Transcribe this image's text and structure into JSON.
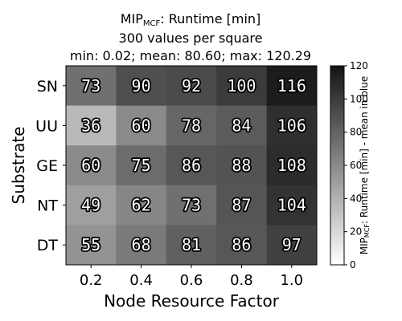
{
  "chart_data": {
    "type": "heatmap",
    "title": {
      "main": "MIP",
      "main_sub": "MCF",
      "main_suffix": ": Runtime [min]",
      "line2": "300 values per square",
      "line3": "min: 0.02; mean: 80.60; max: 120.29"
    },
    "xlabel": "Node Resource Factor",
    "ylabel": "Substrate",
    "x_categories": [
      "0.2",
      "0.4",
      "0.6",
      "0.8",
      "1.0"
    ],
    "y_categories": [
      "SN",
      "UU",
      "GE",
      "NT",
      "DT"
    ],
    "values": [
      [
        73,
        90,
        92,
        100,
        116
      ],
      [
        36,
        60,
        78,
        84,
        106
      ],
      [
        60,
        75,
        86,
        88,
        108
      ],
      [
        49,
        62,
        73,
        87,
        104
      ],
      [
        55,
        68,
        81,
        86,
        97
      ]
    ],
    "colorbar": {
      "label_prefix": "MIP",
      "label_sub": "MCF",
      "label_suffix": ": Runtime [min] - mean in blue",
      "min": 0,
      "max": 120,
      "ticks": [
        0,
        20,
        40,
        60,
        80,
        100,
        120
      ],
      "colormap": "Greys"
    }
  }
}
